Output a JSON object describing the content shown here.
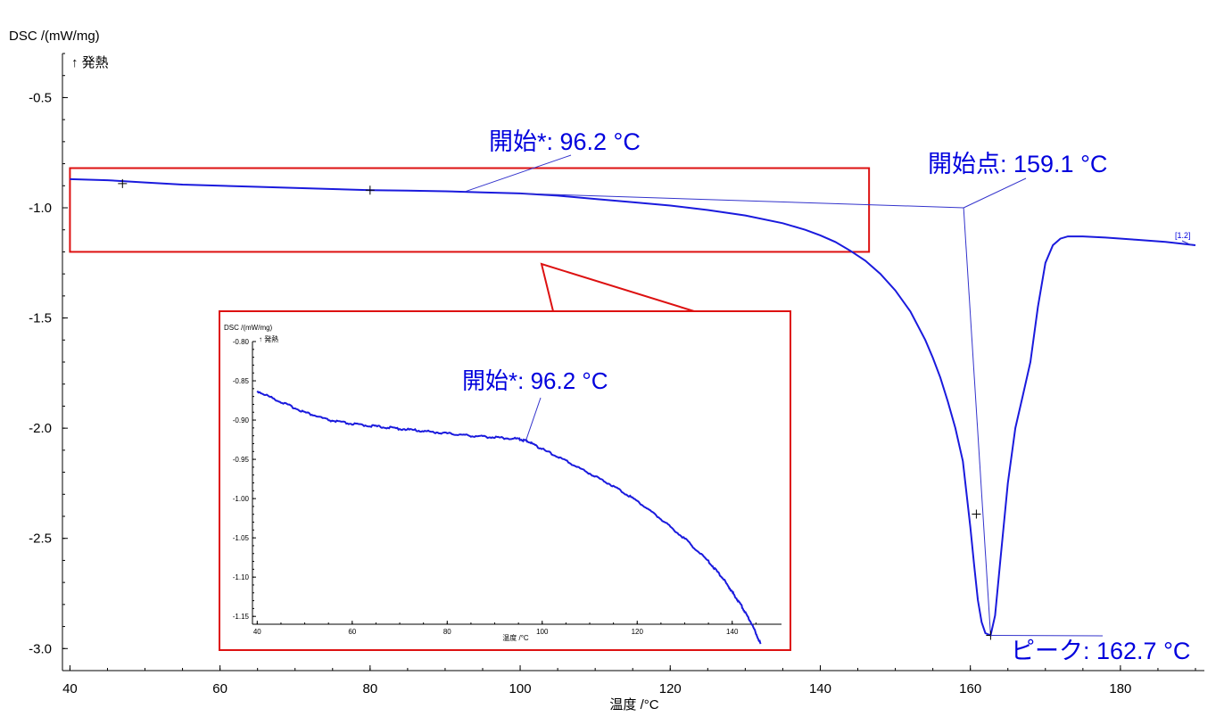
{
  "chart_data": {
    "type": "line",
    "main": {
      "ylabel": "DSC /(mW/mg)",
      "direction_label": "↑ 発熱",
      "xlabel": "温度 /°C",
      "xlim": [
        39,
        190
      ],
      "ylim": [
        -3.1,
        -0.3
      ],
      "x_ticks": [
        40,
        60,
        80,
        100,
        120,
        140,
        160,
        180
      ],
      "y_ticks": [
        -0.5,
        -1.0,
        -1.5,
        -2.0,
        -2.5,
        -3.0
      ],
      "x_tick_labels": [
        "40",
        "60",
        "80",
        "100",
        "120",
        "140",
        "160",
        "180"
      ],
      "y_tick_labels": [
        "-0.5",
        "-1.0",
        "-1.5",
        "-2.0",
        "-2.5",
        "-3.0"
      ],
      "curve_label": "[1.2]",
      "series": [
        {
          "color": "#1a1add",
          "x": [
            40,
            45,
            50,
            55,
            60,
            65,
            70,
            75,
            80,
            85,
            90,
            95,
            100,
            105,
            110,
            115,
            120,
            125,
            130,
            135,
            138,
            140,
            142,
            144,
            146,
            148,
            150,
            152,
            154,
            155,
            156,
            157,
            158,
            159,
            160,
            160.5,
            161,
            161.5,
            162,
            162.7,
            163.3,
            164,
            165,
            166,
            167,
            168,
            169,
            170,
            171,
            172,
            173,
            175,
            178,
            182,
            186,
            190
          ],
          "y": [
            -0.87,
            -0.875,
            -0.885,
            -0.895,
            -0.9,
            -0.905,
            -0.91,
            -0.915,
            -0.92,
            -0.922,
            -0.925,
            -0.93,
            -0.935,
            -0.945,
            -0.96,
            -0.975,
            -0.99,
            -1.01,
            -1.035,
            -1.07,
            -1.1,
            -1.125,
            -1.155,
            -1.195,
            -1.24,
            -1.3,
            -1.375,
            -1.47,
            -1.6,
            -1.68,
            -1.77,
            -1.88,
            -2.0,
            -2.15,
            -2.45,
            -2.62,
            -2.78,
            -2.88,
            -2.93,
            -2.94,
            -2.85,
            -2.6,
            -2.25,
            -2.0,
            -1.85,
            -1.7,
            -1.45,
            -1.25,
            -1.17,
            -1.14,
            -1.13,
            -1.13,
            -1.135,
            -1.145,
            -1.155,
            -1.17
          ]
        }
      ],
      "markers": [
        {
          "x": 47,
          "y": -0.89
        },
        {
          "x": 80,
          "y": -0.92
        },
        {
          "x": 160.8,
          "y": -2.39
        },
        {
          "x": 162.7,
          "y": -2.94
        }
      ],
      "annotations": [
        {
          "label": "開始*: 96.2 °C",
          "x": 96.2,
          "y": -0.935
        },
        {
          "label": "開始点: 159.1 °C",
          "x": 159.1,
          "y": -1.0
        },
        {
          "label": "ピーク: 162.7 °C",
          "x": 162.7,
          "y": -2.94
        }
      ],
      "zoom_box": {
        "xlim": [
          40,
          146.5
        ],
        "ylim": [
          -1.2,
          -0.82
        ]
      }
    },
    "inset": {
      "ylabel": "DSC /(mW/mg)",
      "direction_label": "↑ 発熱",
      "xlabel": "温度 /°C",
      "xlim": [
        39,
        147
      ],
      "ylim": [
        -1.16,
        -0.8
      ],
      "x_ticks": [
        40,
        60,
        80,
        100,
        120,
        140
      ],
      "y_ticks": [
        -0.8,
        -0.85,
        -0.9,
        -0.95,
        -1.0,
        -1.05,
        -1.1,
        -1.15
      ],
      "x_tick_labels": [
        "40",
        "60",
        "80",
        "100",
        "120",
        "140"
      ],
      "y_tick_labels": [
        "-0.80",
        "-0.85",
        "-0.90",
        "-0.95",
        "-1.00",
        "-1.05",
        "-1.10",
        "-1.15"
      ],
      "series": [
        {
          "color": "#1a1add",
          "x": [
            40,
            45,
            50,
            55,
            60,
            65,
            70,
            75,
            80,
            85,
            90,
            95,
            97,
            100,
            105,
            110,
            115,
            120,
            125,
            130,
            135,
            138,
            140,
            142,
            144,
            146
          ],
          "y": [
            -0.863,
            -0.877,
            -0.89,
            -0.9,
            -0.905,
            -0.908,
            -0.911,
            -0.914,
            -0.917,
            -0.92,
            -0.922,
            -0.924,
            -0.927,
            -0.937,
            -0.952,
            -0.968,
            -0.984,
            -1.003,
            -1.026,
            -1.051,
            -1.08,
            -1.101,
            -1.119,
            -1.137,
            -1.158,
            -1.185
          ]
        }
      ],
      "annotations": [
        {
          "label": "開始*: 96.2 °C",
          "x": 96.2,
          "y": -0.926
        }
      ]
    }
  }
}
